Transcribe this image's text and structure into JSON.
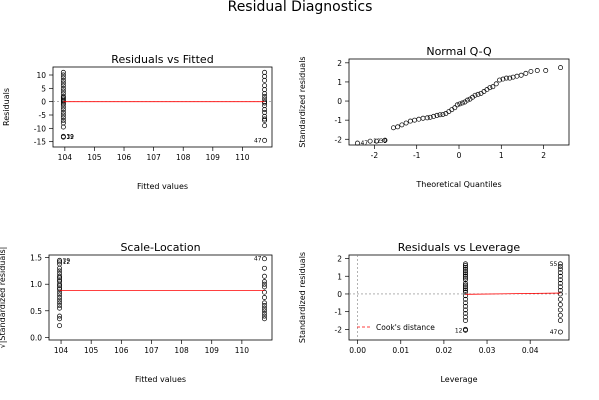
{
  "figure": {
    "title": "Residual Diagnostics"
  },
  "chart_data": [
    {
      "type": "scatter",
      "title": "Residuals vs Fitted",
      "xlabel": "Fitted values",
      "ylabel": "Residuals",
      "xlim": [
        103.6,
        111.0
      ],
      "ylim": [
        -17,
        13
      ],
      "xticks": [
        104,
        105,
        106,
        107,
        108,
        109,
        110
      ],
      "yticks": [
        -15,
        -10,
        -5,
        0,
        5,
        10
      ],
      "groups": [
        {
          "x": 103.95,
          "y": [
            11,
            10,
            9,
            8,
            7,
            6,
            5,
            4,
            3,
            2,
            1.5,
            1,
            0.5,
            0,
            -0.5,
            -1,
            -2,
            -3,
            -4,
            -5,
            -6,
            -7,
            -8,
            -9.5,
            -13,
            -13.3
          ]
        },
        {
          "x": 110.75,
          "y": [
            11,
            9.5,
            8,
            6,
            4.5,
            3,
            2,
            1,
            0,
            -0.5,
            -1.5,
            -3,
            -4,
            -5.5,
            -6.5,
            -7,
            -9,
            -14.5
          ]
        }
      ],
      "reference_line": {
        "y": 0,
        "color": "#808080",
        "dash": true
      },
      "smooth_line": {
        "points": [
          [
            103.95,
            0
          ],
          [
            110.75,
            0
          ]
        ],
        "color": "#ff0000"
      },
      "point_labels": [
        {
          "x": 103.95,
          "y": -13,
          "text": "39"
        },
        {
          "x": 103.95,
          "y": -13.3,
          "text": "12"
        },
        {
          "x": 110.75,
          "y": -14.5,
          "text": "47"
        }
      ]
    },
    {
      "type": "scatter",
      "title": "Normal Q-Q",
      "xlabel": "Theoretical Quantiles",
      "ylabel": "Standardized residuals",
      "xlim": [
        -2.6,
        2.6
      ],
      "ylim": [
        -2.3,
        2.2
      ],
      "xticks": [
        -2,
        -1,
        0,
        1,
        2
      ],
      "yticks": [
        -2,
        -1,
        0,
        1,
        2
      ],
      "points": [
        [
          -2.4,
          -2.2
        ],
        [
          -2.1,
          -2.1
        ],
        [
          -1.95,
          -2.1
        ],
        [
          -1.75,
          -2.05
        ],
        [
          -1.55,
          -1.4
        ],
        [
          -1.45,
          -1.35
        ],
        [
          -1.35,
          -1.25
        ],
        [
          -1.25,
          -1.15
        ],
        [
          -1.15,
          -1.05
        ],
        [
          -1.05,
          -1.0
        ],
        [
          -0.95,
          -0.95
        ],
        [
          -0.85,
          -0.9
        ],
        [
          -0.75,
          -0.88
        ],
        [
          -0.68,
          -0.85
        ],
        [
          -0.6,
          -0.8
        ],
        [
          -0.52,
          -0.75
        ],
        [
          -0.45,
          -0.72
        ],
        [
          -0.38,
          -0.7
        ],
        [
          -0.31,
          -0.65
        ],
        [
          -0.24,
          -0.55
        ],
        [
          -0.17,
          -0.45
        ],
        [
          -0.1,
          -0.35
        ],
        [
          -0.04,
          -0.2
        ],
        [
          0.02,
          -0.15
        ],
        [
          0.08,
          -0.1
        ],
        [
          0.14,
          -0.05
        ],
        [
          0.2,
          0.05
        ],
        [
          0.26,
          0.1
        ],
        [
          0.32,
          0.2
        ],
        [
          0.38,
          0.3
        ],
        [
          0.45,
          0.35
        ],
        [
          0.52,
          0.4
        ],
        [
          0.59,
          0.5
        ],
        [
          0.66,
          0.6
        ],
        [
          0.73,
          0.7
        ],
        [
          0.8,
          0.75
        ],
        [
          0.88,
          0.9
        ],
        [
          0.96,
          1.1
        ],
        [
          1.04,
          1.15
        ],
        [
          1.12,
          1.2
        ],
        [
          1.2,
          1.2
        ],
        [
          1.28,
          1.25
        ],
        [
          1.37,
          1.3
        ],
        [
          1.47,
          1.35
        ],
        [
          1.58,
          1.45
        ],
        [
          1.7,
          1.55
        ],
        [
          1.85,
          1.6
        ],
        [
          2.05,
          1.6
        ],
        [
          2.4,
          1.75
        ]
      ],
      "point_labels": [
        {
          "x": -2.4,
          "y": -2.2,
          "text": "47"
        },
        {
          "x": -2.1,
          "y": -2.1,
          "text": "12"
        },
        {
          "x": -1.95,
          "y": -2.1,
          "text": "39"
        }
      ]
    },
    {
      "type": "scatter",
      "title": "Scale-Location",
      "xlabel": "Fitted values",
      "ylabel": "√|Standardized residuals|",
      "xlim": [
        103.6,
        111.0
      ],
      "ylim": [
        -0.05,
        1.55
      ],
      "xticks": [
        104,
        105,
        106,
        107,
        108,
        109,
        110
      ],
      "yticks": [
        0.0,
        0.5,
        1.0,
        1.5
      ],
      "groups": [
        {
          "x": 103.95,
          "y": [
            1.45,
            1.42,
            1.38,
            1.3,
            1.25,
            1.2,
            1.15,
            1.12,
            1.08,
            1.05,
            1.0,
            0.97,
            0.93,
            0.9,
            0.85,
            0.8,
            0.75,
            0.7,
            0.65,
            0.6,
            0.55,
            0.4,
            0.35,
            0.22
          ]
        },
        {
          "x": 110.75,
          "y": [
            1.48,
            1.3,
            1.15,
            1.05,
            1.0,
            0.95,
            0.85,
            0.75,
            0.65,
            0.6,
            0.55,
            0.5,
            0.45,
            0.4,
            0.35
          ]
        }
      ],
      "smooth_line": {
        "points": [
          [
            103.95,
            0.88
          ],
          [
            110.75,
            0.88
          ]
        ],
        "color": "#ff0000"
      },
      "point_labels": [
        {
          "x": 103.95,
          "y": 1.45,
          "text": "39"
        },
        {
          "x": 103.95,
          "y": 1.42,
          "text": "12"
        },
        {
          "x": 110.75,
          "y": 1.48,
          "text": "47"
        }
      ]
    },
    {
      "type": "scatter",
      "title": "Residuals vs Leverage",
      "xlabel": "Leverage",
      "ylabel": "Standardized residuals",
      "xlim": [
        -0.002,
        0.049
      ],
      "ylim": [
        -2.6,
        2.2
      ],
      "xticks": [
        0.0,
        0.01,
        0.02,
        0.03,
        0.04
      ],
      "yticks": [
        -2,
        -1,
        0,
        1,
        2
      ],
      "groups": [
        {
          "x": 0.025,
          "y": [
            1.7,
            1.6,
            1.5,
            1.4,
            1.3,
            1.2,
            1.1,
            1.0,
            0.9,
            0.8,
            0.6,
            0.5,
            0.4,
            0.3,
            0.2,
            0.1,
            -0.1,
            -0.3,
            -0.5,
            -0.7,
            -0.9,
            -1.1,
            -1.3,
            -1.5,
            -2.0,
            -2.05
          ]
        },
        {
          "x": 0.047,
          "y": [
            1.7,
            1.55,
            1.4,
            1.2,
            1.0,
            0.8,
            0.6,
            0.4,
            0.2,
            0.0,
            -0.3,
            -0.6,
            -0.9,
            -1.2,
            -1.5,
            -2.15
          ]
        }
      ],
      "reference_lines": [
        {
          "y": 0,
          "color": "#808080",
          "dash": true
        },
        {
          "x": 0,
          "color": "#808080",
          "dash": true
        }
      ],
      "smooth_line": {
        "points": [
          [
            0.025,
            -0.02
          ],
          [
            0.047,
            0.05
          ]
        ],
        "color": "#ff0000"
      },
      "point_labels": [
        {
          "x": 0.047,
          "y": 1.7,
          "text": "55"
        },
        {
          "x": 0.025,
          "y": -2.05,
          "text": "12"
        },
        {
          "x": 0.047,
          "y": -2.15,
          "text": "47"
        }
      ],
      "legend": {
        "position": "bottom-left",
        "text": "Cook's distance",
        "color": "#ff0000",
        "dash": true
      }
    }
  ]
}
